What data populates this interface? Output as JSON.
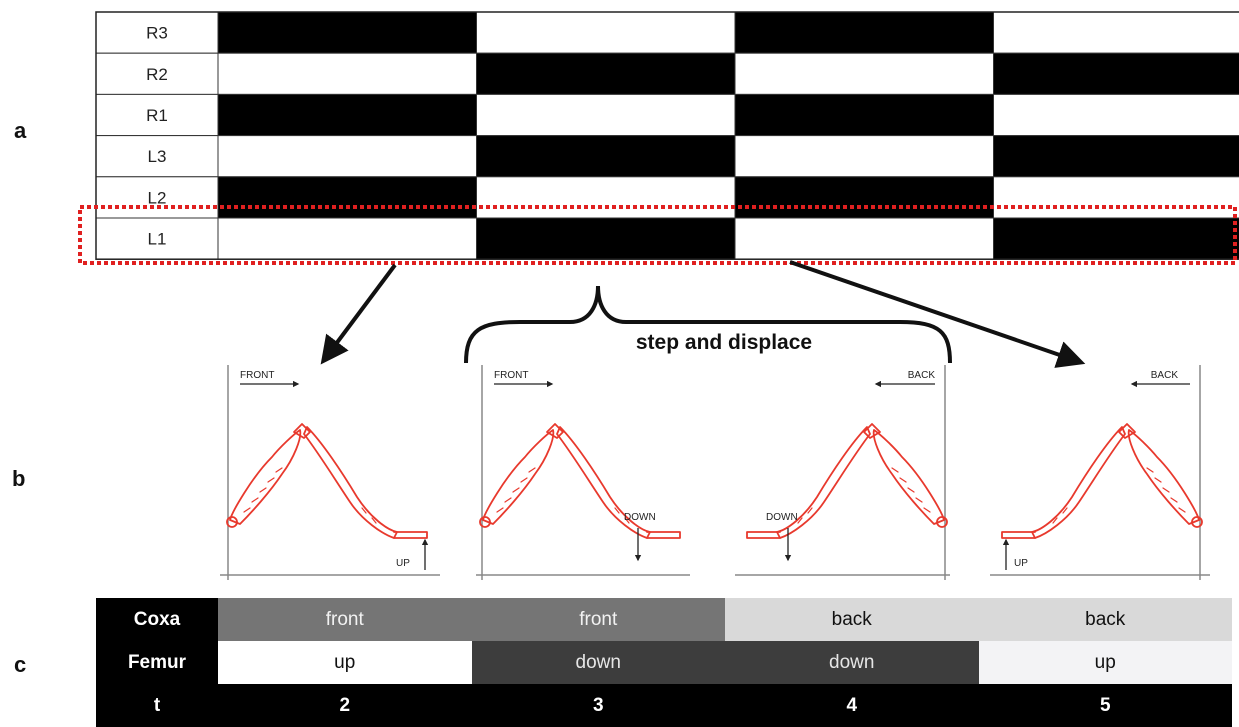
{
  "panels": {
    "a": "a",
    "b": "b",
    "c": "c"
  },
  "gait": {
    "legs": [
      "R3",
      "R2",
      "R1",
      "L3",
      "L2",
      "L1"
    ],
    "pattern": [
      [
        1,
        0,
        1,
        0
      ],
      [
        0,
        1,
        0,
        1
      ],
      [
        1,
        0,
        1,
        0
      ],
      [
        0,
        1,
        0,
        1
      ],
      [
        1,
        0,
        1,
        0
      ],
      [
        0,
        1,
        0,
        1
      ]
    ],
    "highlight_leg": "L1",
    "fill_color": "#000000",
    "highlight_color": "#e02020"
  },
  "leg_poses": {
    "caption": "step and displace",
    "direction_labels": [
      "FRONT",
      "FRONT",
      "BACK",
      "BACK"
    ],
    "vertical_labels": [
      "UP",
      "DOWN",
      "DOWN",
      "UP"
    ],
    "leg_color": "#e8392d"
  },
  "state_table": {
    "coxa_label": "Coxa",
    "femur_label": "Femur",
    "time_label": "t",
    "coxa": [
      "front",
      "front",
      "back",
      "back"
    ],
    "femur": [
      "up",
      "down",
      "down",
      "up"
    ],
    "t": [
      "2",
      "3",
      "4",
      "5"
    ]
  }
}
